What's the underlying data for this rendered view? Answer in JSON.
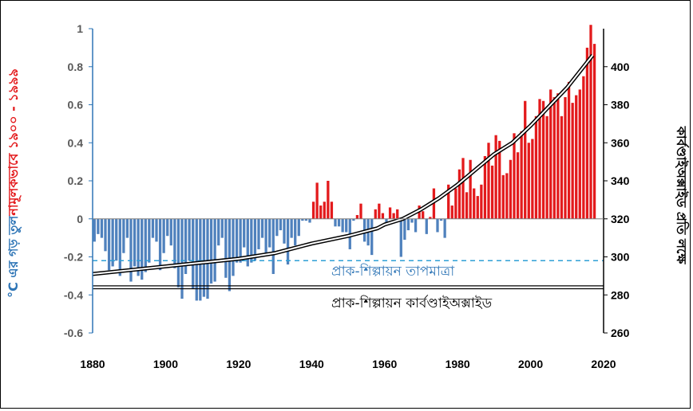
{
  "chart_data": {
    "type": "bar",
    "x_ticks": [
      "1880",
      "1900",
      "1920",
      "1940",
      "1960",
      "1980",
      "2000",
      "2020"
    ],
    "y_left_ticks": [
      "1",
      "0.8",
      "0.6",
      "0.4",
      "0.2",
      "0",
      "-0.2",
      "-0.4",
      "-0.6"
    ],
    "y_right_ticks": [
      "400",
      "380",
      "360",
      "340",
      "320",
      "300",
      "280",
      "260"
    ],
    "y_left_label_part1": "°C এর গড় তুল",
    "y_left_label_part2": "নামূলকভাবে ১৯০০ - ১৯৯৯",
    "y_right_label": "কার্বণ্ডাইঅক্সাইড প্রতি লক্ষে",
    "ylim_left": [
      -0.6,
      1
    ],
    "ylim_right": [
      260,
      420
    ],
    "xlim": [
      1880,
      2020
    ],
    "annotations": {
      "preindustrial_temp_label": "প্রাক-শিল্পায়ন তাপমাত্রা",
      "preindustrial_co2_label": "প্রাক-শিল্পায়ন কার্বণ্ডাইঅক্সাইড",
      "preindustrial_temp_value": -0.22,
      "preindustrial_co2_value": 284
    },
    "colors": {
      "negative_bars": "#4f81bd",
      "positive_bars": "#e31a1c",
      "co2_line": "#000000",
      "temp_label": "#2e75b6",
      "left_label_blue": "#2e75b6",
      "left_label_red": "#e31a1c",
      "dashed_line": "#2e9fd6"
    },
    "series": [
      {
        "years": [
          1880,
          1881,
          1882,
          1883,
          1884,
          1885,
          1886,
          1887,
          1888,
          1889,
          1890,
          1891,
          1892,
          1893,
          1894,
          1895,
          1896,
          1897,
          1898,
          1899,
          1900,
          1901,
          1902,
          1903,
          1904,
          1905,
          1906,
          1907,
          1908,
          1909,
          1910,
          1911,
          1912,
          1913,
          1914,
          1915,
          1916,
          1917,
          1918,
          1919,
          1920,
          1921,
          1922,
          1923,
          1924,
          1925,
          1926,
          1927,
          1928,
          1929,
          1930,
          1931,
          1932,
          1933,
          1934,
          1935,
          1936,
          1937,
          1938,
          1939,
          1940,
          1941,
          1942,
          1943,
          1944,
          1945,
          1946,
          1947,
          1948,
          1949,
          1950,
          1951,
          1952,
          1953,
          1954,
          1955,
          1956,
          1957,
          1958,
          1959,
          1960,
          1961,
          1962,
          1963,
          1964,
          1965,
          1966,
          1967,
          1968,
          1969,
          1970,
          1971,
          1972,
          1973,
          1974,
          1975,
          1976,
          1977,
          1978,
          1979,
          1980,
          1981,
          1982,
          1983,
          1984,
          1985,
          1986,
          1987,
          1988,
          1989,
          1990,
          1991,
          1992,
          1993,
          1994,
          1995,
          1996,
          1997,
          1998,
          1999,
          2000,
          2001,
          2002,
          2003,
          2004,
          2005,
          2006,
          2007,
          2008,
          2009,
          2010,
          2011,
          2012,
          2013,
          2014,
          2015,
          2016,
          2017
        ],
        "values": [
          -0.12,
          -0.08,
          -0.1,
          -0.17,
          -0.27,
          -0.25,
          -0.22,
          -0.3,
          -0.18,
          -0.1,
          -0.33,
          -0.25,
          -0.3,
          -0.32,
          -0.28,
          -0.23,
          -0.1,
          -0.12,
          -0.27,
          -0.18,
          -0.09,
          -0.14,
          -0.26,
          -0.36,
          -0.42,
          -0.29,
          -0.22,
          -0.37,
          -0.43,
          -0.43,
          -0.41,
          -0.42,
          -0.34,
          -0.33,
          -0.14,
          -0.1,
          -0.31,
          -0.38,
          -0.3,
          -0.23,
          -0.23,
          -0.15,
          -0.25,
          -0.23,
          -0.22,
          -0.16,
          -0.1,
          -0.18,
          -0.15,
          -0.29,
          -0.09,
          -0.06,
          -0.13,
          -0.24,
          -0.1,
          -0.14,
          -0.09,
          -0.01,
          -0.01,
          -0.02,
          0.09,
          0.19,
          0.07,
          0.09,
          0.2,
          0.09,
          -0.04,
          -0.04,
          -0.07,
          -0.07,
          -0.16,
          -0.01,
          0.02,
          0.08,
          -0.12,
          -0.14,
          -0.19,
          0.05,
          0.08,
          0.03,
          -0.03,
          0.06,
          0.03,
          0.05,
          -0.2,
          -0.11,
          -0.06,
          -0.02,
          -0.07,
          0.07,
          0.04,
          -0.08,
          0.01,
          0.16,
          -0.07,
          -0.01,
          -0.1,
          0.18,
          0.07,
          0.16,
          0.26,
          0.32,
          0.14,
          0.31,
          0.16,
          0.12,
          0.18,
          0.33,
          0.4,
          0.28,
          0.44,
          0.41,
          0.23,
          0.24,
          0.31,
          0.45,
          0.35,
          0.46,
          0.62,
          0.4,
          0.42,
          0.54,
          0.63,
          0.62,
          0.54,
          0.68,
          0.64,
          0.66,
          0.54,
          0.64,
          0.72,
          0.61,
          0.65,
          0.68,
          0.75,
          0.9,
          1.02,
          0.92
        ]
      },
      {
        "name": "",
        "years": [
          1880,
          1900,
          1910,
          1920,
          1930,
          1940,
          1950,
          1958,
          1960,
          1965,
          1970,
          1975,
          1980,
          1985,
          1990,
          1995,
          2000,
          2005,
          2010,
          2017
        ],
        "values": [
          291,
          295,
          297,
          299,
          302,
          307,
          311,
          315,
          317,
          320,
          325,
          331,
          338,
          346,
          354,
          360,
          369,
          379,
          389,
          406
        ]
      }
    ]
  }
}
